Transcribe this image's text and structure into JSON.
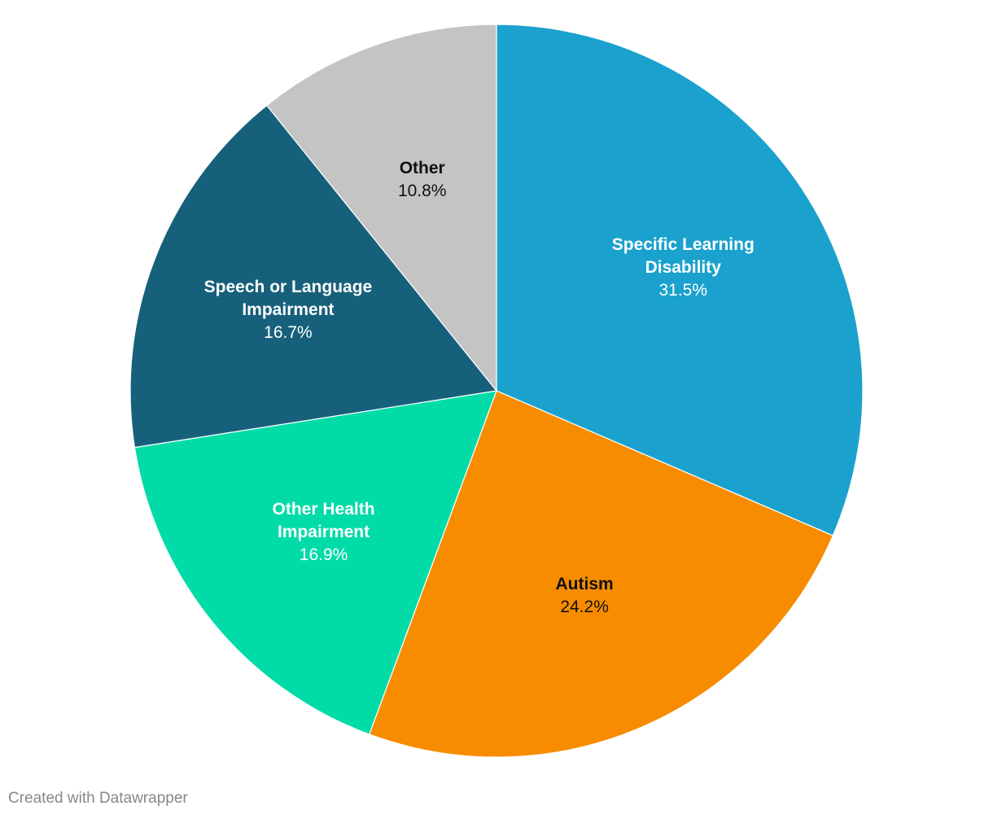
{
  "chart_data": {
    "type": "pie",
    "categories": [
      "Specific Learning Disability",
      "Autism",
      "Other Health Impairment",
      "Speech or Language Impairment",
      "Other"
    ],
    "values": [
      31.5,
      24.2,
      16.9,
      16.7,
      10.8
    ],
    "value_labels": [
      "31.5%",
      "24.2%",
      "16.9%",
      "16.7%",
      "10.8%"
    ],
    "colors": [
      "#1aa1ce",
      "#f78c00",
      "#00dba8",
      "#17607b",
      "#c4c4c4"
    ],
    "source": "Created with Datawrapper"
  }
}
